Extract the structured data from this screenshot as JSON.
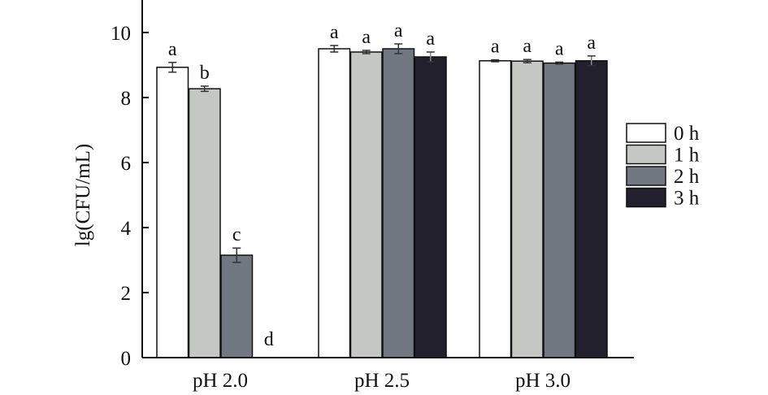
{
  "chart_data": {
    "type": "bar",
    "ylabel": "lg(CFU/mL)",
    "ylim": [
      0,
      11
    ],
    "yticks": [
      0,
      2,
      4,
      6,
      8,
      10
    ],
    "categories": [
      "pH 2.0",
      "pH 2.5",
      "pH 3.0"
    ],
    "series": [
      {
        "name": "0 h",
        "color": "#ffffff",
        "values": [
          8.93,
          9.5,
          9.13
        ],
        "errors": [
          0.15,
          0.1,
          0.03
        ],
        "labels": [
          "a",
          "a",
          "a"
        ]
      },
      {
        "name": "1 h",
        "color": "#c4c8c5",
        "values": [
          8.27,
          9.4,
          9.12
        ],
        "errors": [
          0.08,
          0.05,
          0.05
        ],
        "labels": [
          "b",
          "a",
          "a"
        ]
      },
      {
        "name": "2 h",
        "color": "#717882",
        "values": [
          3.15,
          9.5,
          9.06
        ],
        "errors": [
          0.22,
          0.15,
          0.03
        ],
        "labels": [
          "c",
          "a",
          "a"
        ]
      },
      {
        "name": "3 h",
        "color": "#21202c",
        "values": [
          0,
          9.25,
          9.13
        ],
        "errors": [
          0,
          0.15,
          0.15
        ],
        "labels": [
          "d",
          "a",
          "a"
        ]
      }
    ],
    "legend_position": "right"
  }
}
